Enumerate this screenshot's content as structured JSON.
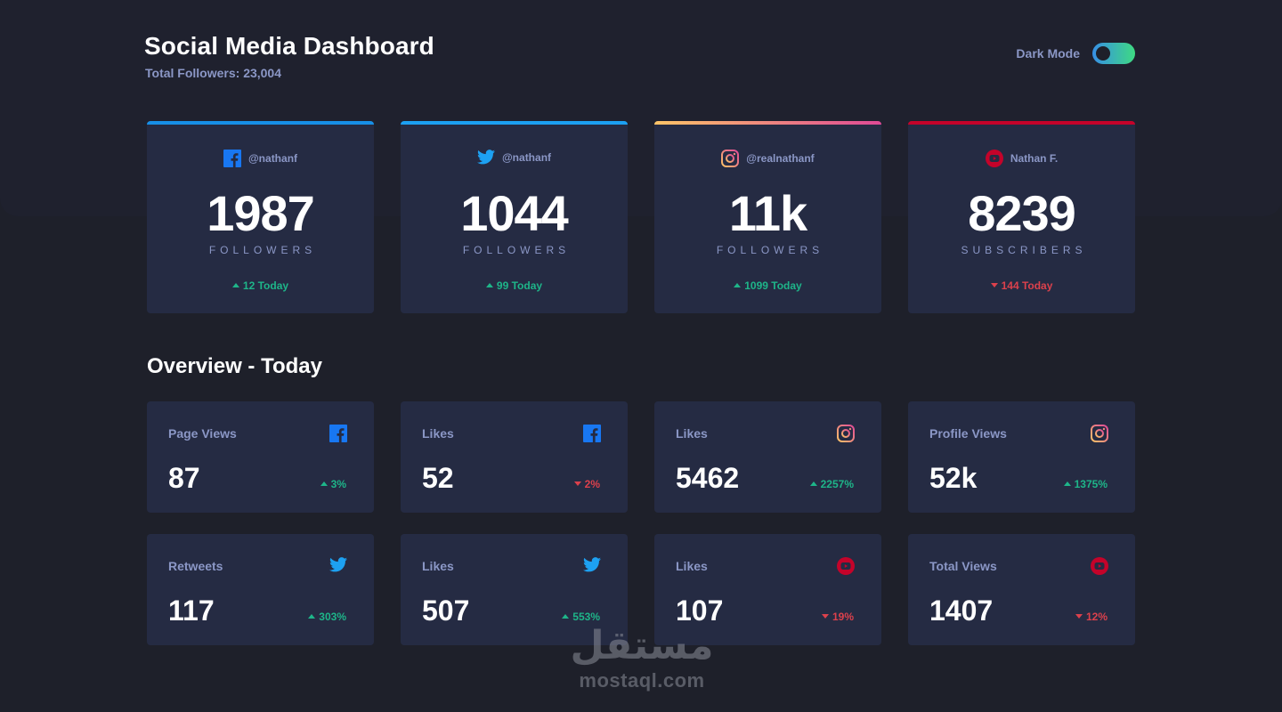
{
  "header": {
    "title": "Social Media Dashboard",
    "subtitle": "Total Followers: 23,004",
    "toggle_label": "Dark Mode"
  },
  "colors": {
    "facebook": "#1877f2",
    "twitter": "#1da1f2",
    "instagram_gradient": [
      "#fdc468",
      "#df4996"
    ],
    "youtube": "#c4032a",
    "up": "#1eb589",
    "down": "#dc414c"
  },
  "followers": [
    {
      "platform_icon": "facebook-icon",
      "handle": "@nathanf",
      "count": "1987",
      "unit": "FOLLOWERS",
      "today": "12 Today",
      "trend": "up"
    },
    {
      "platform_icon": "twitter-icon",
      "handle": "@nathanf",
      "count": "1044",
      "unit": "FOLLOWERS",
      "today": "99 Today",
      "trend": "up"
    },
    {
      "platform_icon": "instagram-icon",
      "handle": "@realnathanf",
      "count": "11k",
      "unit": "FOLLOWERS",
      "today": "1099 Today",
      "trend": "up"
    },
    {
      "platform_icon": "youtube-icon",
      "handle": "Nathan F.",
      "count": "8239",
      "unit": "SUBSCRIBERS",
      "today": "144 Today",
      "trend": "down"
    }
  ],
  "overview": {
    "title": "Overview - Today",
    "cards": [
      {
        "metric": "Page Views",
        "platform_icon": "facebook-icon",
        "value": "87",
        "change": "3%",
        "trend": "up"
      },
      {
        "metric": "Likes",
        "platform_icon": "facebook-icon",
        "value": "52",
        "change": "2%",
        "trend": "down"
      },
      {
        "metric": "Likes",
        "platform_icon": "instagram-icon",
        "value": "5462",
        "change": "2257%",
        "trend": "up"
      },
      {
        "metric": "Profile Views",
        "platform_icon": "instagram-icon",
        "value": "52k",
        "change": "1375%",
        "trend": "up"
      },
      {
        "metric": "Retweets",
        "platform_icon": "twitter-icon",
        "value": "117",
        "change": "303%",
        "trend": "up"
      },
      {
        "metric": "Likes",
        "platform_icon": "twitter-icon",
        "value": "507",
        "change": "553%",
        "trend": "up"
      },
      {
        "metric": "Likes",
        "platform_icon": "youtube-icon",
        "value": "107",
        "change": "19%",
        "trend": "down"
      },
      {
        "metric": "Total Views",
        "platform_icon": "youtube-icon",
        "value": "1407",
        "change": "12%",
        "trend": "down"
      }
    ]
  },
  "watermark": {
    "arabic": "مستقل",
    "latin": "mostaql.com"
  }
}
